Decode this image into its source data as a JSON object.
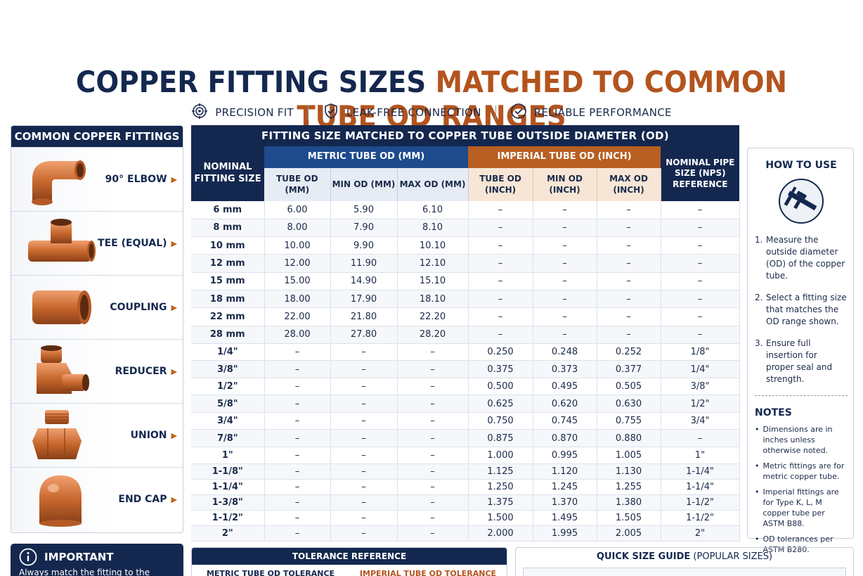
{
  "title": {
    "part1": "COPPER FITTING SIZES",
    "part2": "MATCHED TO COMMON TUBE OD RANGES"
  },
  "features": [
    {
      "icon": "target-icon",
      "label": "PRECISION FIT"
    },
    {
      "icon": "shield-check-icon",
      "label": "LEAK-FREE CONNECTION"
    },
    {
      "icon": "check-circle-icon",
      "label": "RELIABLE PERFORMANCE"
    }
  ],
  "fittings": {
    "heading": "COMMON COPPER FITTINGS",
    "items": [
      {
        "label": "90° ELBOW",
        "icon": "elbow-fitting-icon"
      },
      {
        "label": "TEE (EQUAL)",
        "icon": "tee-fitting-icon"
      },
      {
        "label": "COUPLING",
        "icon": "coupling-fitting-icon"
      },
      {
        "label": "REDUCER",
        "icon": "reducer-fitting-icon"
      },
      {
        "label": "UNION",
        "icon": "union-fitting-icon"
      },
      {
        "label": "END CAP",
        "icon": "end-cap-fitting-icon"
      }
    ]
  },
  "table": {
    "heading": "FITTING SIZE MATCHED TO COPPER TUBE OUTSIDE DIAMETER (OD)",
    "nominal_header": "NOMINAL FITTING SIZE",
    "metric_header": "METRIC TUBE OD (MM)",
    "imperial_header": "IMPERIAL TUBE OD (INCH)",
    "nps_header": "NOMINAL PIPE SIZE (NPS) REFERENCE",
    "metric_sub": [
      "TUBE OD (MM)",
      "MIN OD (MM)",
      "MAX OD (MM)"
    ],
    "imperial_sub": [
      "TUBE OD (INCH)",
      "MIN OD (INCH)",
      "MAX OD (INCH)"
    ],
    "rows": [
      [
        "6 mm",
        "6.00",
        "5.90",
        "6.10",
        "–",
        "–",
        "–",
        "–"
      ],
      [
        "8 mm",
        "8.00",
        "7.90",
        "8.10",
        "–",
        "–",
        "–",
        "–"
      ],
      [
        "10 mm",
        "10.00",
        "9.90",
        "10.10",
        "–",
        "–",
        "–",
        "–"
      ],
      [
        "12 mm",
        "12.00",
        "11.90",
        "12.10",
        "–",
        "–",
        "–",
        "–"
      ],
      [
        "15 mm",
        "15.00",
        "14.90",
        "15.10",
        "–",
        "–",
        "–",
        "–"
      ],
      [
        "18 mm",
        "18.00",
        "17.90",
        "18.10",
        "–",
        "–",
        "–",
        "–"
      ],
      [
        "22 mm",
        "22.00",
        "21.80",
        "22.20",
        "–",
        "–",
        "–",
        "–"
      ],
      [
        "28 mm",
        "28.00",
        "27.80",
        "28.20",
        "–",
        "–",
        "–",
        "–"
      ],
      [
        "1/4\"",
        "–",
        "–",
        "–",
        "0.250",
        "0.248",
        "0.252",
        "1/8\""
      ],
      [
        "3/8\"",
        "–",
        "–",
        "–",
        "0.375",
        "0.373",
        "0.377",
        "1/4\""
      ],
      [
        "1/2\"",
        "–",
        "–",
        "–",
        "0.500",
        "0.495",
        "0.505",
        "3/8\""
      ],
      [
        "5/8\"",
        "–",
        "–",
        "–",
        "0.625",
        "0.620",
        "0.630",
        "1/2\""
      ],
      [
        "3/4\"",
        "–",
        "–",
        "–",
        "0.750",
        "0.745",
        "0.755",
        "3/4\""
      ],
      [
        "7/8\"",
        "–",
        "–",
        "–",
        "0.875",
        "0.870",
        "0.880",
        "–"
      ],
      [
        "1\"",
        "–",
        "–",
        "–",
        "1.000",
        "0.995",
        "1.005",
        "1\""
      ],
      [
        "1-1/8\"",
        "–",
        "–",
        "–",
        "1.125",
        "1.120",
        "1.130",
        "1-1/4\""
      ],
      [
        "1-1/4\"",
        "–",
        "–",
        "–",
        "1.250",
        "1.245",
        "1.255",
        "1-1/4\""
      ],
      [
        "1-3/8\"",
        "–",
        "–",
        "–",
        "1.375",
        "1.370",
        "1.380",
        "1-1/2\""
      ],
      [
        "1-1/2\"",
        "–",
        "–",
        "–",
        "1.500",
        "1.495",
        "1.505",
        "1-1/2\""
      ],
      [
        "2\"",
        "–",
        "–",
        "–",
        "2.000",
        "1.995",
        "2.005",
        "2\""
      ]
    ]
  },
  "how_to_use": {
    "heading": "HOW TO USE",
    "icon": "caliper-icon",
    "steps": [
      {
        "n": "1.",
        "text": "Measure the outside diameter (OD) of the copper tube."
      },
      {
        "n": "2.",
        "text": "Select a fitting size that matches the OD range shown."
      },
      {
        "n": "3.",
        "text": "Ensure full insertion for proper seal and strength."
      }
    ]
  },
  "notes": {
    "heading": "NOTES",
    "items": [
      "Dimensions are in inches unless otherwise noted.",
      "Metric fittings are for metric copper tube.",
      "Imperial fittings are for Type K, L, M copper tube per ASTM B88.",
      "OD tolerances per ASTM B280."
    ]
  },
  "important": {
    "icon": "info-icon",
    "heading": "IMPORTANT",
    "text": "Always match the fitting to the"
  },
  "tolerance": {
    "heading": "TOLERANCE REFERENCE",
    "metric": "METRIC TUBE OD TOLERANCE",
    "imperial": "IMPERIAL TUBE OD TOLERANCE"
  },
  "quick_guide": {
    "heading": "QUICK SIZE GUIDE",
    "suffix": "(POPULAR SIZES)"
  },
  "colors": {
    "navy": "#14284f",
    "copper": "#b3541e",
    "metric_blue": "#1d4b8c"
  }
}
